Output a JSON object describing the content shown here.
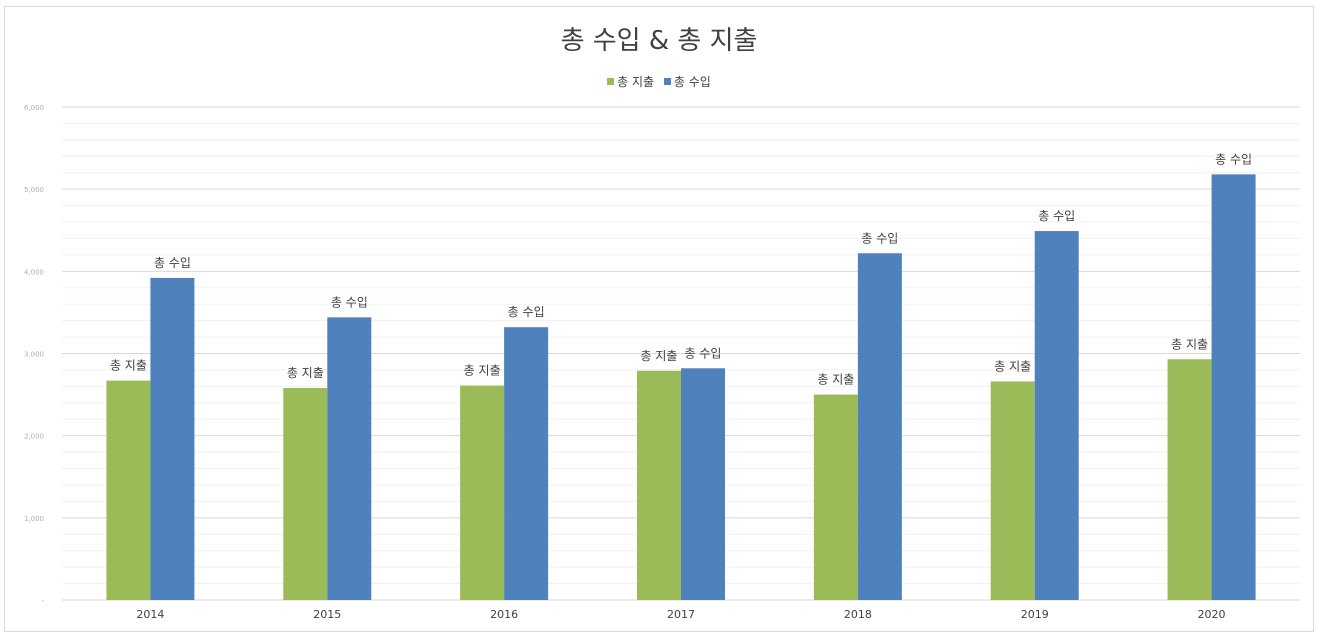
{
  "chart_data": {
    "type": "bar",
    "title": "총 수입 & 총 지출",
    "xlabel": "",
    "ylabel": "",
    "categories": [
      "2014",
      "2015",
      "2016",
      "2017",
      "2018",
      "2019",
      "2020"
    ],
    "series": [
      {
        "name": "총 지출",
        "color": "#9bbb59",
        "values": [
          2670,
          2580,
          2610,
          2790,
          2500,
          2660,
          2930
        ]
      },
      {
        "name": "총 수입",
        "color": "#4f81bd",
        "values": [
          3920,
          3440,
          3320,
          2820,
          4220,
          4490,
          5180
        ]
      }
    ],
    "data_labels": {
      "총 지출": "총 지출",
      "총 수입": "총 수입"
    },
    "ylim": [
      0,
      6000
    ],
    "y_ticks": [
      {
        "value": 0,
        "label": "-"
      },
      {
        "value": 1000,
        "label": "1,000"
      },
      {
        "value": 2000,
        "label": "2,000"
      },
      {
        "value": 3000,
        "label": "3,000"
      },
      {
        "value": 4000,
        "label": "4,000"
      },
      {
        "value": 5000,
        "label": "5,000"
      },
      {
        "value": 6000,
        "label": "6,000"
      }
    ],
    "grid": true,
    "minor_grid": true,
    "legend_position": "top-center"
  }
}
